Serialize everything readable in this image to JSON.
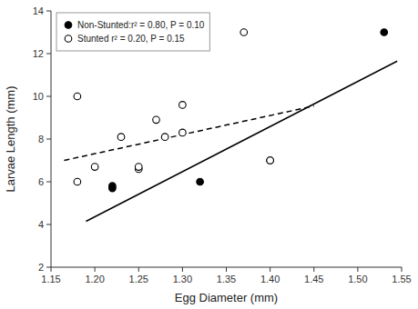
{
  "chart_data": {
    "type": "scatter",
    "xlabel": "Egg Diameter (mm)",
    "ylabel": "Larvae Length (mm)",
    "xlim": [
      1.15,
      1.55
    ],
    "ylim": [
      2,
      14
    ],
    "xticks": [
      1.15,
      {
        "value": 1.2,
        "label": "1.20"
      },
      1.25,
      {
        "value": 1.3,
        "label": "1.30"
      },
      1.35,
      {
        "value": 1.4,
        "label": "1.40"
      },
      1.45,
      {
        "value": 1.5,
        "label": "1.50"
      },
      1.55
    ],
    "yticks": [
      2,
      4,
      6,
      8,
      10,
      12,
      14
    ],
    "grid": false,
    "legend": "upper left",
    "series": [
      {
        "name": "Non-Stunted:r² = 0.80, P = 0.10",
        "type": "scatter",
        "marker": "circle",
        "color": "#000000",
        "x": [
          1.22,
          1.22,
          1.32,
          1.4,
          1.53
        ],
        "values": [
          5.8,
          5.7,
          6.0,
          7.0,
          13.0
        ]
      },
      {
        "name": "Stunted r² = 0.20, P = 0.15",
        "type": "scatter",
        "marker": "open-circle",
        "color": "#000000",
        "x": [
          1.18,
          1.18,
          1.2,
          1.23,
          1.25,
          1.25,
          1.27,
          1.28,
          1.3,
          1.3,
          1.37,
          1.4
        ],
        "values": [
          10.0,
          6.0,
          6.7,
          8.1,
          6.6,
          6.7,
          8.9,
          8.1,
          8.3,
          9.6,
          13.0,
          7.0
        ]
      },
      {
        "type": "line",
        "line_style": "solid",
        "color": "#000000",
        "x": [
          1.19,
          1.545
        ],
        "values": [
          4.15,
          11.65
        ]
      },
      {
        "type": "line",
        "line_style": "dashed",
        "color": "#000000",
        "x": [
          1.165,
          1.45
        ],
        "values": [
          7.0,
          9.55
        ]
      }
    ]
  }
}
